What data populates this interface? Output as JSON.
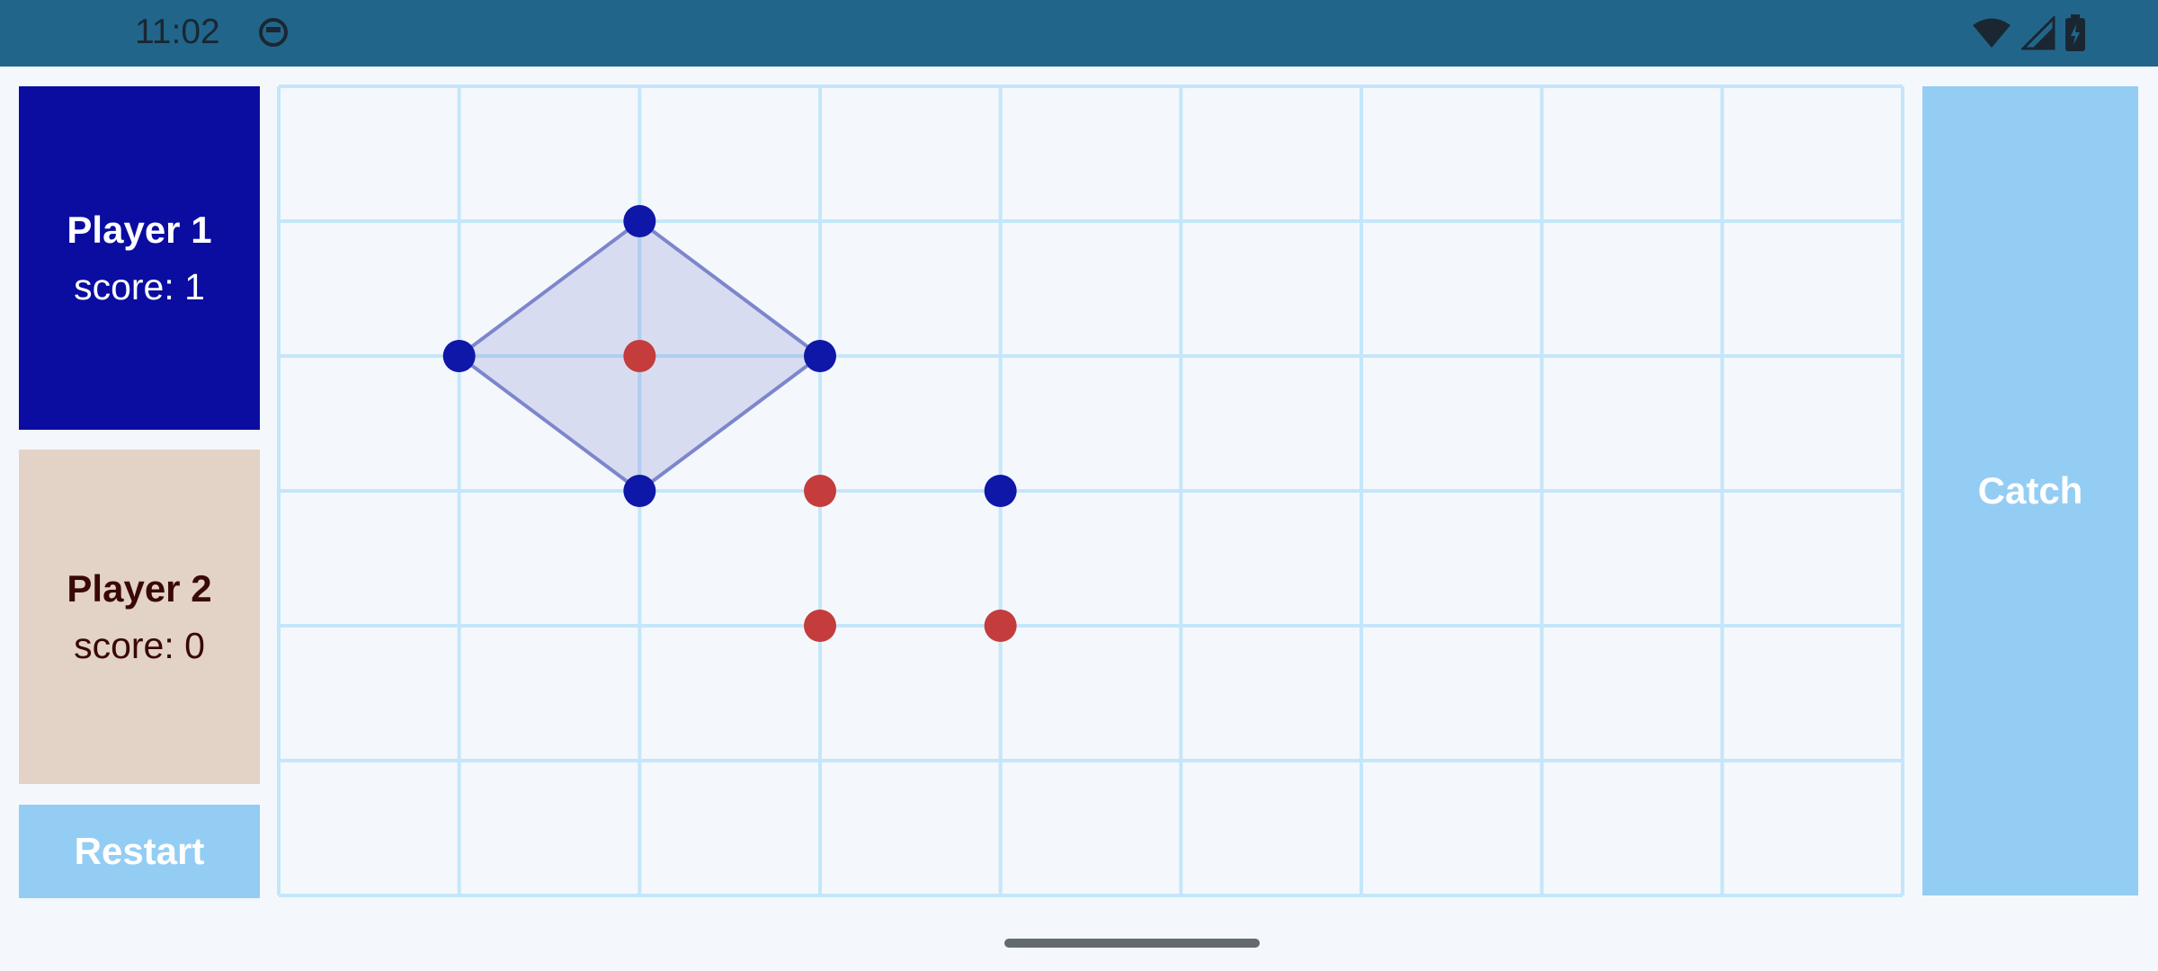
{
  "status_bar": {
    "time": "11:02",
    "icons": [
      "face-icon",
      "wifi-icon",
      "signal-icon",
      "battery-icon"
    ]
  },
  "players": [
    {
      "name": "Player 1",
      "score_text": "score: 1",
      "color": "#0a0da0"
    },
    {
      "name": "Player 2",
      "score_text": "score: 0",
      "color": "#e3d3c7"
    }
  ],
  "buttons": {
    "restart": "Restart",
    "catch": "Catch"
  },
  "board": {
    "columns": 9,
    "rows": 6,
    "grid_color": "#c5e6fa",
    "player1_dot_color": "#0e17a8",
    "player2_dot_color": "#c43c3c",
    "player1_dots": [
      [
        2,
        1
      ],
      [
        1,
        2
      ],
      [
        3,
        2
      ],
      [
        2,
        3
      ],
      [
        4,
        3
      ]
    ],
    "player2_dots": [
      [
        2,
        2
      ],
      [
        3,
        3
      ],
      [
        3,
        4
      ],
      [
        4,
        4
      ]
    ],
    "captured_polygon": [
      [
        2,
        1
      ],
      [
        3,
        2
      ],
      [
        2,
        3
      ],
      [
        1,
        2
      ]
    ]
  }
}
